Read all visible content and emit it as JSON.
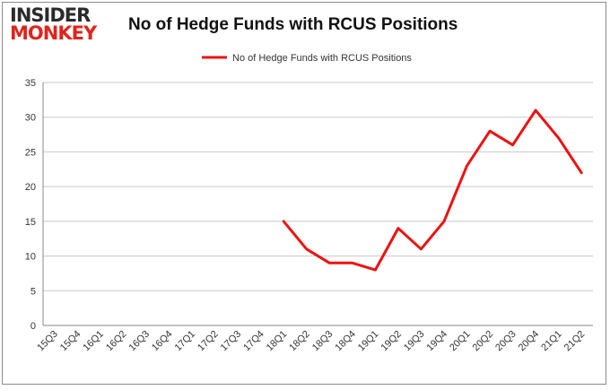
{
  "logo": {
    "line1": "INSIDER",
    "line2": "MONKEY"
  },
  "chart_data": {
    "type": "line",
    "title": "No of Hedge Funds with RCUS Positions",
    "xlabel": "",
    "ylabel": "",
    "categories": [
      "15Q3",
      "15Q4",
      "16Q1",
      "16Q2",
      "16Q3",
      "16Q4",
      "17Q1",
      "17Q2",
      "17Q3",
      "17Q4",
      "18Q1",
      "18Q2",
      "18Q3",
      "18Q4",
      "19Q1",
      "19Q2",
      "19Q3",
      "19Q4",
      "20Q1",
      "20Q2",
      "20Q3",
      "20Q4",
      "21Q1",
      "21Q2"
    ],
    "series": [
      {
        "name": "No of Hedge Funds with RCUS Positions",
        "color": "#ee1111",
        "values": [
          null,
          null,
          null,
          null,
          null,
          null,
          null,
          null,
          null,
          null,
          15,
          11,
          9,
          9,
          8,
          14,
          11,
          15,
          23,
          28,
          26,
          31,
          27,
          22
        ]
      }
    ],
    "ylim": [
      0,
      35
    ],
    "yticks": [
      "0",
      "5",
      "10",
      "15",
      "20",
      "25",
      "30",
      "35"
    ],
    "grid": true,
    "legend": "top-center"
  }
}
